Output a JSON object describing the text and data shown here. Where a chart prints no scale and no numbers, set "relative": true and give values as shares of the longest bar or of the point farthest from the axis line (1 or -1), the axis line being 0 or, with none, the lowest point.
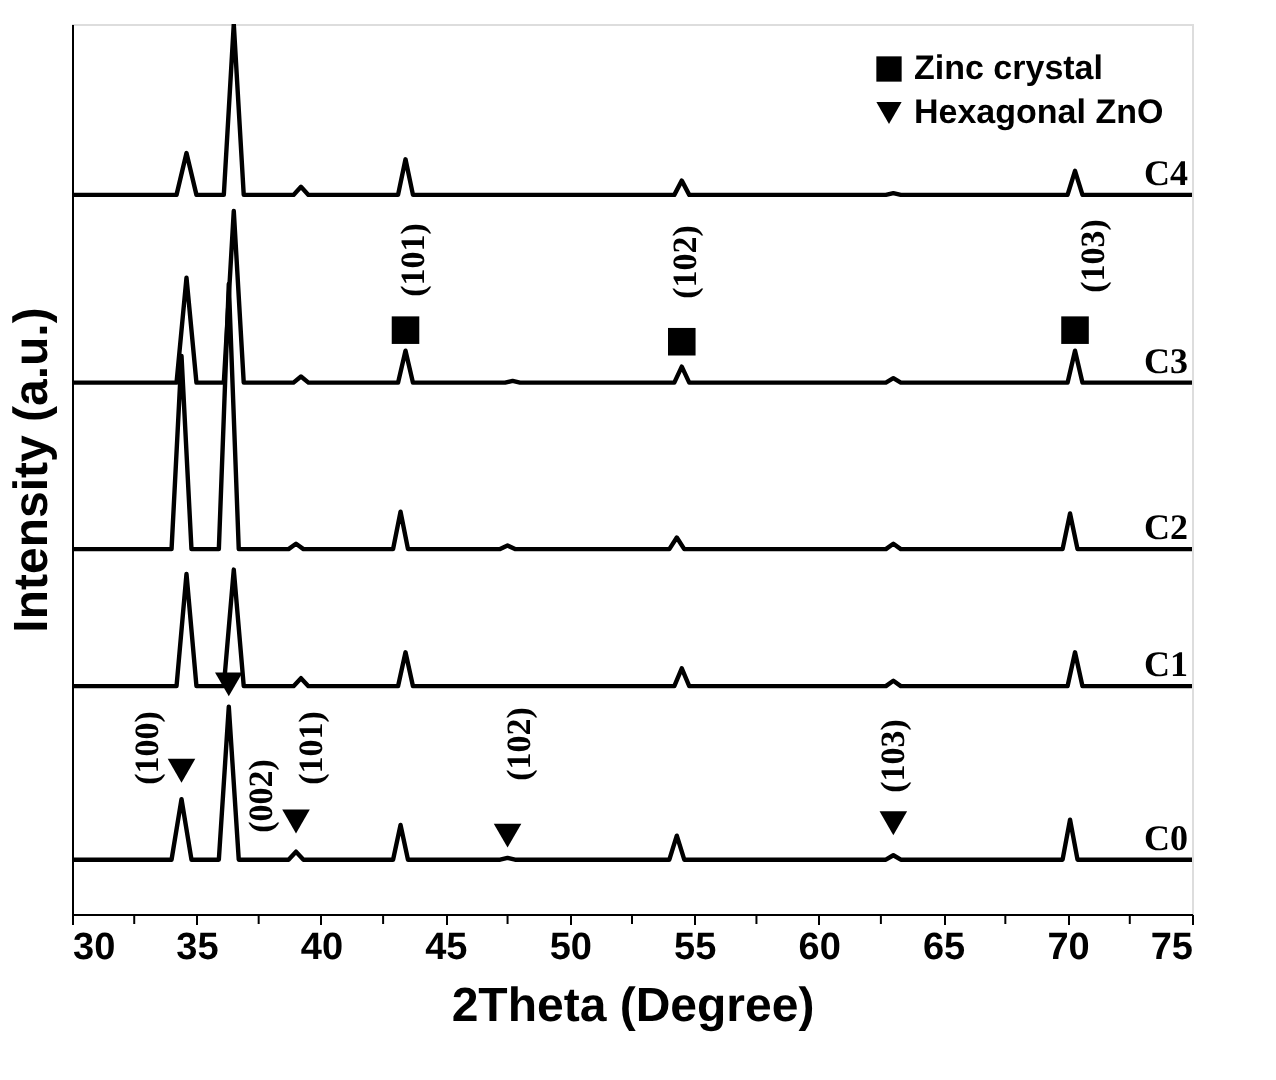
{
  "chart_data": {
    "type": "line",
    "xlabel": "2Theta (Degree)",
    "ylabel": "Intensity (a.u.)",
    "relative": true,
    "legend": "top right",
    "grid": false,
    "xlim": [
      30,
      75
    ],
    "xticks": [
      30,
      {
        "value": 32.5,
        "label": null
      },
      35,
      {
        "value": 37.5,
        "label": null
      },
      40,
      {
        "value": 42.5,
        "label": null
      },
      45,
      {
        "value": 47.5,
        "label": null
      },
      50,
      {
        "value": 52.5,
        "label": null
      },
      55,
      {
        "value": 57.5,
        "label": null
      },
      60,
      {
        "value": 62.5,
        "label": null
      },
      65,
      {
        "value": 67.5,
        "label": null
      },
      70,
      {
        "value": 72.5,
        "label": null
      },
      75
    ],
    "series": [
      {
        "name": "C0",
        "color": "#000000",
        "x": [
          30,
          34.0,
          34.4,
          34.8,
          35.9,
          36.3,
          36.7,
          38.7,
          39.0,
          39.3,
          42.9,
          43.2,
          43.5,
          47.2,
          47.5,
          47.8,
          54.0,
          54.3,
          54.6,
          62.7,
          63.0,
          63.3,
          69.8,
          70.1,
          70.4,
          75
        ],
        "values": [
          0.061,
          0.061,
          0.129,
          0.061,
          0.061,
          0.233,
          0.061,
          0.061,
          0.07,
          0.061,
          0.061,
          0.1,
          0.061,
          0.061,
          0.063,
          0.061,
          0.061,
          0.088,
          0.061,
          0.061,
          0.066,
          0.061,
          0.061,
          0.106,
          0.061,
          0.061
        ]
      },
      {
        "name": "C1",
        "color": "#000000",
        "x": [
          30,
          34.2,
          34.6,
          35.0,
          36.1,
          36.5,
          36.9,
          38.9,
          39.2,
          39.5,
          43.1,
          43.4,
          43.7,
          54.2,
          54.5,
          54.8,
          62.7,
          63.0,
          63.3,
          70.0,
          70.3,
          70.6,
          75
        ],
        "values": [
          0.256,
          0.256,
          0.382,
          0.256,
          0.256,
          0.387,
          0.256,
          0.256,
          0.265,
          0.256,
          0.256,
          0.294,
          0.256,
          0.256,
          0.276,
          0.256,
          0.256,
          0.262,
          0.256,
          0.256,
          0.294,
          0.256,
          0.256
        ]
      },
      {
        "name": "C2",
        "color": "#000000",
        "x": [
          30,
          34.0,
          34.4,
          34.8,
          35.9,
          36.3,
          36.7,
          38.7,
          39.0,
          39.3,
          42.9,
          43.2,
          43.5,
          47.2,
          47.5,
          47.8,
          54.0,
          54.3,
          54.6,
          62.7,
          63.0,
          63.3,
          69.8,
          70.1,
          70.4,
          75
        ],
        "values": [
          0.41,
          0.41,
          0.627,
          0.41,
          0.41,
          0.708,
          0.41,
          0.41,
          0.416,
          0.41,
          0.41,
          0.452,
          0.41,
          0.41,
          0.414,
          0.41,
          0.41,
          0.423,
          0.41,
          0.41,
          0.416,
          0.41,
          0.41,
          0.45,
          0.41,
          0.41
        ]
      },
      {
        "name": "C3",
        "color": "#000000",
        "x": [
          30,
          34.2,
          34.6,
          35.0,
          36.1,
          36.5,
          36.9,
          38.9,
          39.2,
          39.5,
          43.1,
          43.4,
          43.7,
          47.4,
          47.7,
          48.0,
          54.2,
          54.5,
          54.8,
          62.7,
          63.0,
          63.3,
          70.0,
          70.3,
          70.6,
          75
        ],
        "values": [
          0.597,
          0.597,
          0.715,
          0.597,
          0.597,
          0.79,
          0.597,
          0.597,
          0.604,
          0.597,
          0.597,
          0.633,
          0.597,
          0.597,
          0.599,
          0.597,
          0.597,
          0.615,
          0.597,
          0.597,
          0.602,
          0.597,
          0.597,
          0.633,
          0.597,
          0.597
        ]
      },
      {
        "name": "C4",
        "color": "#000000",
        "x": [
          30,
          34.2,
          34.6,
          35.0,
          36.1,
          36.5,
          36.9,
          38.9,
          39.2,
          39.5,
          43.1,
          43.4,
          43.7,
          54.2,
          54.5,
          54.8,
          62.7,
          63.0,
          63.3,
          70.0,
          70.3,
          70.6,
          75
        ],
        "values": [
          0.808,
          0.808,
          0.855,
          0.808,
          0.808,
          1.0,
          0.808,
          0.808,
          0.817,
          0.808,
          0.808,
          0.848,
          0.808,
          0.808,
          0.824,
          0.808,
          0.808,
          0.81,
          0.808,
          0.808,
          0.835,
          0.808,
          0.808
        ]
      },
      {
        "name": "Zinc crystal",
        "type": "scatter",
        "marker": "square",
        "color": "#000000",
        "x": [
          43.4,
          54.5,
          70.3
        ],
        "values": [
          0.656,
          0.643,
          0.656
        ]
      },
      {
        "name": "Hexagonal ZnO",
        "type": "scatter",
        "marker": "triangle",
        "color": "#000000",
        "x": [
          34.4,
          36.3,
          39.0,
          47.5,
          63.0
        ],
        "values": [
          0.161,
          0.258,
          0.104,
          0.088,
          0.102
        ]
      }
    ],
    "line_style": "solid",
    "annotations": [
      "(100)",
      "(002)",
      "(101)",
      "(102)",
      "(103)",
      "(101)",
      "(102)",
      "(103)"
    ]
  }
}
